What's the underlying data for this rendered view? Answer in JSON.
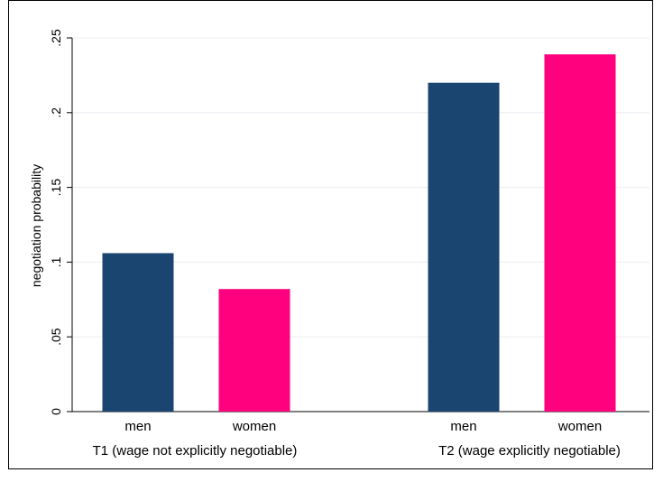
{
  "chart_data": {
    "type": "bar",
    "ylabel": "negotiation probability",
    "ylim": [
      0,
      0.25
    ],
    "yticks": [
      {
        "value": 0,
        "label": "0"
      },
      {
        "value": 0.05,
        "label": ".05"
      },
      {
        "value": 0.1,
        "label": ".1"
      },
      {
        "value": 0.15,
        "label": ".15"
      },
      {
        "value": 0.2,
        "label": ".2"
      },
      {
        "value": 0.25,
        "label": ".25"
      }
    ],
    "grid": true,
    "groups": [
      {
        "label": "T1 (wage not explicitly negotiable)",
        "bars": [
          {
            "category": "men",
            "value": 0.106,
            "color": "#1b4571"
          },
          {
            "category": "women",
            "value": 0.082,
            "color": "#ff007f"
          }
        ]
      },
      {
        "label": "T2 (wage explicitly negotiable)",
        "bars": [
          {
            "category": "men",
            "value": 0.22,
            "color": "#1b4571"
          },
          {
            "category": "women",
            "value": 0.239,
            "color": "#ff007f"
          }
        ]
      }
    ]
  }
}
